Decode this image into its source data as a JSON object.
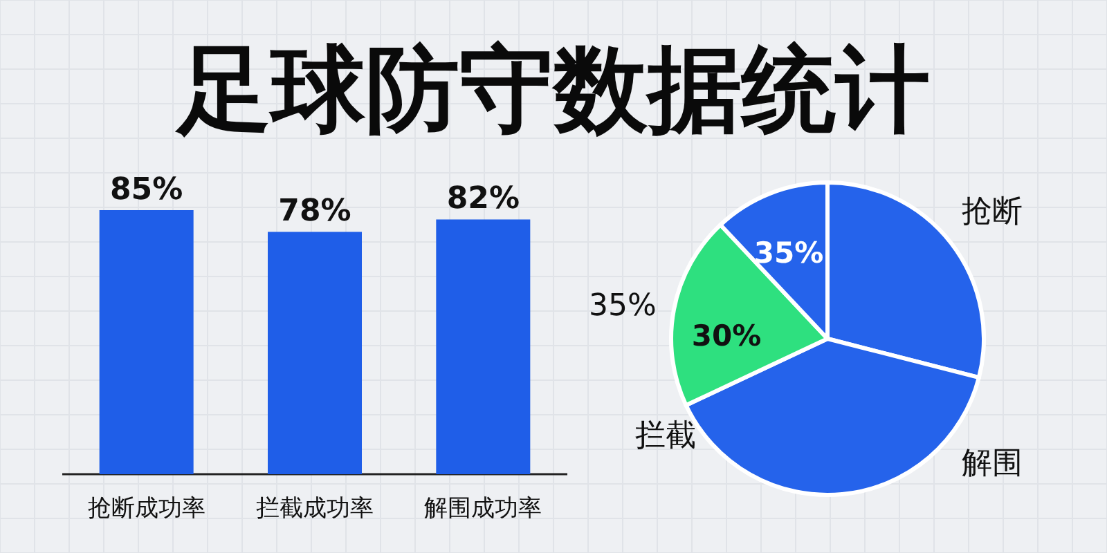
{
  "chart_data": [
    {
      "type": "bar",
      "title": "足球防守数据统计",
      "categories": [
        "抢断成功率",
        "拦截成功率",
        "解围成功率"
      ],
      "values": [
        85,
        78,
        82
      ],
      "color": "#1f5ee8",
      "data_labels": true,
      "value_labels": [
        "85%",
        "78%",
        "82%"
      ]
    },
    {
      "type": "pie",
      "categories": [
        "抢断",
        "解围",
        "拦截",
        null
      ],
      "values": [
        29,
        39,
        20,
        12
      ],
      "colors": [
        "#2563eb",
        "#2563eb",
        "#2ee07f",
        "#2563eb"
      ],
      "annotations": [
        "35%",
        "30%",
        "35%"
      ]
    }
  ]
}
